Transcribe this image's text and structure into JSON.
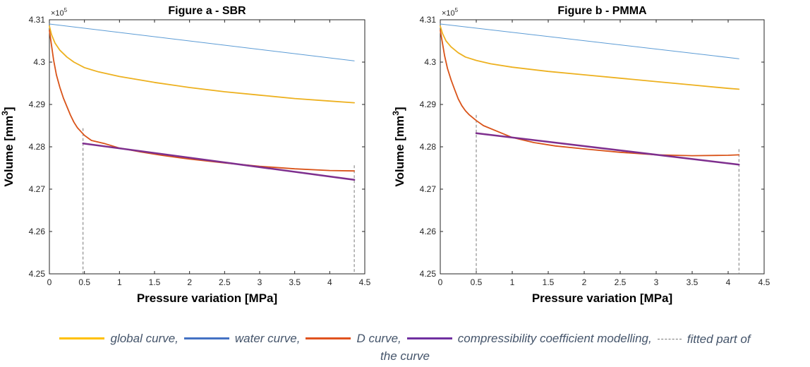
{
  "chart_data": [
    {
      "type": "line",
      "title": "Figure a - SBR",
      "xlabel": "Pressure variation [MPa]",
      "ylabel": "Volume [mm",
      "ylabel_sup": "3",
      "ylabel_end": "]",
      "y_exponent_label": "×10",
      "y_exponent_sup": "5",
      "xlim": [
        0,
        4.5
      ],
      "ylim": [
        4.25,
        4.31
      ],
      "x_ticks": [
        0,
        0.5,
        1,
        1.5,
        2,
        2.5,
        3,
        3.5,
        4,
        4.5
      ],
      "x_tick_labels": [
        "0",
        "0.5",
        "1",
        "1.5",
        "2",
        "2.5",
        "3",
        "3.5",
        "4",
        "4.5"
      ],
      "y_ticks": [
        4.25,
        4.26,
        4.27,
        4.28,
        4.29,
        4.3,
        4.31
      ],
      "y_tick_labels": [
        "4.25",
        "4.26",
        "4.27",
        "4.28",
        "4.29",
        "4.3",
        "4.31"
      ],
      "series": [
        {
          "key": "water",
          "color": "#5b9bd5",
          "x": [
            0,
            4.35
          ],
          "y": [
            4.309,
            4.3003
          ]
        },
        {
          "key": "global",
          "color": "#edb120",
          "x": [
            0,
            0.03,
            0.08,
            0.15,
            0.25,
            0.35,
            0.5,
            0.7,
            1.0,
            1.5,
            2.0,
            2.5,
            3.0,
            3.5,
            4.0,
            4.35
          ],
          "y": [
            4.3085,
            4.3065,
            4.3045,
            4.3028,
            4.3012,
            4.3,
            4.2987,
            4.2977,
            4.2966,
            4.2952,
            4.294,
            4.293,
            4.2922,
            4.2914,
            4.2908,
            4.2904
          ]
        },
        {
          "key": "d",
          "color": "#d95319",
          "x": [
            0,
            0.03,
            0.06,
            0.1,
            0.15,
            0.2,
            0.25,
            0.3,
            0.35,
            0.4,
            0.5,
            0.6,
            0.8,
            1.0,
            1.3,
            1.6,
            2.0,
            2.5,
            3.0,
            3.5,
            4.0,
            4.35
          ],
          "y": [
            4.3075,
            4.304,
            4.3005,
            4.297,
            4.294,
            4.2915,
            4.2895,
            4.2875,
            4.2858,
            4.2845,
            4.2827,
            4.2815,
            4.2807,
            4.2797,
            4.2788,
            4.278,
            4.2771,
            4.2762,
            4.2754,
            4.2748,
            4.2744,
            4.2743
          ]
        },
        {
          "key": "model",
          "color": "#7e2f8e",
          "x": [
            0.48,
            4.35
          ],
          "y": [
            4.2808,
            4.2722
          ]
        }
      ],
      "fit_bounds": [
        0.48,
        4.35
      ]
    },
    {
      "type": "line",
      "title": "Figure b - PMMA",
      "xlabel": "Pressure variation [MPa]",
      "ylabel": "Volume [mm",
      "ylabel_sup": "3",
      "ylabel_end": "]",
      "y_exponent_label": "×10",
      "y_exponent_sup": "5",
      "xlim": [
        0,
        4.5
      ],
      "ylim": [
        4.25,
        4.31
      ],
      "x_ticks": [
        0,
        0.5,
        1,
        1.5,
        2,
        2.5,
        3,
        3.5,
        4,
        4.5
      ],
      "x_tick_labels": [
        "0",
        "0.5",
        "1",
        "1.5",
        "2",
        "2.5",
        "3",
        "3.5",
        "4",
        "4.5"
      ],
      "y_ticks": [
        4.25,
        4.26,
        4.27,
        4.28,
        4.29,
        4.3,
        4.31
      ],
      "y_tick_labels": [
        "4.25",
        "4.26",
        "4.27",
        "4.28",
        "4.29",
        "4.3",
        "4.31"
      ],
      "series": [
        {
          "key": "water",
          "color": "#5b9bd5",
          "x": [
            0,
            4.15
          ],
          "y": [
            4.309,
            4.3008
          ]
        },
        {
          "key": "global",
          "color": "#edb120",
          "x": [
            0,
            0.03,
            0.08,
            0.15,
            0.25,
            0.35,
            0.5,
            0.7,
            1.0,
            1.5,
            2.0,
            2.5,
            3.0,
            3.5,
            4.0,
            4.15
          ],
          "y": [
            4.3085,
            4.3068,
            4.305,
            4.3036,
            4.3022,
            4.3012,
            4.3004,
            4.2996,
            4.2988,
            4.2978,
            4.297,
            4.2962,
            4.2954,
            4.2946,
            4.2938,
            4.2936
          ]
        },
        {
          "key": "d",
          "color": "#d95319",
          "x": [
            0,
            0.03,
            0.06,
            0.1,
            0.15,
            0.2,
            0.25,
            0.3,
            0.35,
            0.4,
            0.5,
            0.6,
            0.8,
            1.0,
            1.3,
            1.6,
            2.0,
            2.5,
            3.0,
            3.5,
            4.0,
            4.15
          ],
          "y": [
            4.3075,
            4.3045,
            4.3015,
            4.2985,
            4.2958,
            4.2935,
            4.2913,
            4.2897,
            4.2885,
            4.2876,
            4.2862,
            4.285,
            4.2836,
            4.2822,
            4.281,
            4.2802,
            4.2795,
            4.2787,
            4.2781,
            4.2779,
            4.278,
            4.2781
          ]
        },
        {
          "key": "model",
          "color": "#7e2f8e",
          "x": [
            0.5,
            4.15
          ],
          "y": [
            4.2832,
            4.2758
          ]
        }
      ],
      "fit_bounds": [
        0.5,
        4.15
      ]
    }
  ],
  "legend": {
    "line1": [
      {
        "key": "global",
        "label": "global curve,",
        "color": "#ffc000"
      },
      {
        "key": "water",
        "label": "water curve,",
        "color": "#4472c4"
      },
      {
        "key": "d",
        "label": "D curve,",
        "color": "#e0531f"
      },
      {
        "key": "model",
        "label": "compressibility coefficient modelling,",
        "color": "#7030a0"
      },
      {
        "key": "fit",
        "label": "fitted part of",
        "dashed": true
      }
    ],
    "line2": "the curve"
  }
}
